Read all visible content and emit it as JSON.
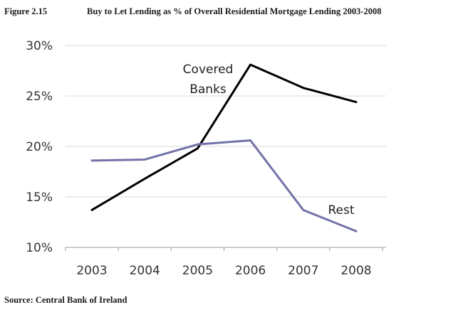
{
  "figure": {
    "number": "Figure 2.15",
    "title": "Buy to Let Lending as % of Overall Residential Mortgage Lending 2003-2008",
    "source": "Source: Central Bank of Ireland"
  },
  "chart_data": {
    "type": "line",
    "title": "Buy to Let Lending as % of Overall Residential Mortgage Lending 2003-2008",
    "xlabel": "",
    "ylabel": "",
    "categories": [
      "2003",
      "2004",
      "2005",
      "2006",
      "2007",
      "2008"
    ],
    "ylim": [
      10,
      30
    ],
    "yticks": [
      10,
      15,
      20,
      25,
      30
    ],
    "ytick_labels": [
      "10%",
      "15%",
      "20%",
      "25%",
      "30%"
    ],
    "grid": true,
    "legend": "none (series labelled directly on the chart)",
    "series": [
      {
        "name": "Covered Banks",
        "label_lines": [
          "Covered",
          "Banks"
        ],
        "color": "#000000",
        "values": [
          13.7,
          16.8,
          19.8,
          28.1,
          25.8,
          24.4
        ]
      },
      {
        "name": "Rest",
        "label_lines": [
          "Rest"
        ],
        "color": "#7272a8",
        "values": [
          18.6,
          18.7,
          20.2,
          20.6,
          13.7,
          11.6
        ]
      }
    ]
  }
}
